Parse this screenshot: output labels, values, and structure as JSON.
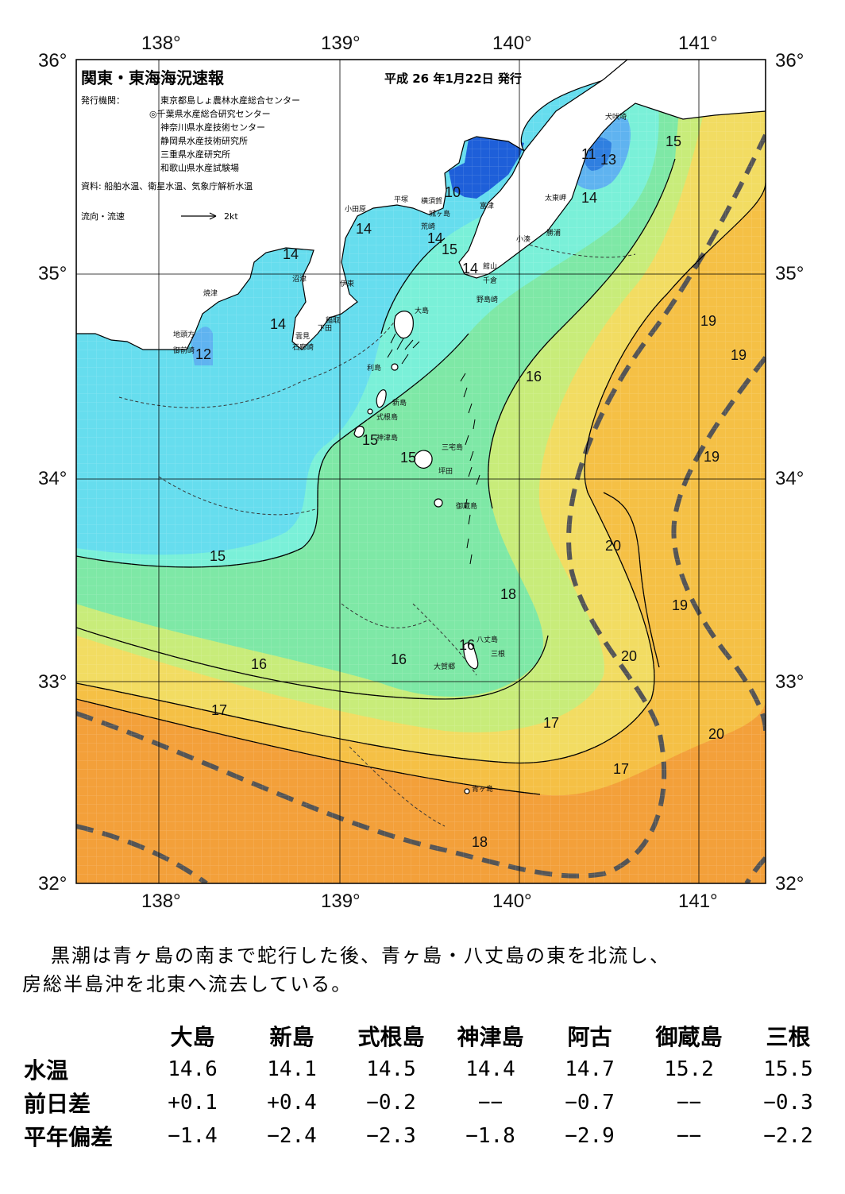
{
  "map": {
    "title": "関東・東海海況速報",
    "date": "平成 26 年1月22日 発行",
    "issuer_label": "発行機関：",
    "issuers": [
      "東京都島しょ農林水産総合センター",
      "◎千葉県水産総合研究センター",
      "神奈川県水産技術センター",
      "静岡県水産技術研究所",
      "三重県水産研究所",
      "和歌山県水産試験場"
    ],
    "sources": "資料: 船舶水温、衛星水温、気象庁解析水温",
    "legend_current": "流向・流速",
    "legend_speed": "2kt",
    "lon_ticks": [
      "138°",
      "139°",
      "140°",
      "141°"
    ],
    "lat_ticks": [
      "36°",
      "35°",
      "34°",
      "33°",
      "32°"
    ],
    "isotherm_labels": [
      "10",
      "11",
      "12",
      "13",
      "14",
      "15",
      "16",
      "17",
      "18",
      "19",
      "20"
    ],
    "placenames": {
      "inubozaki": "犬吠埼",
      "taitomisaki": "太東岬",
      "katsuura": "勝浦",
      "kominato": "小湊",
      "futtsu": "富津",
      "tateyama": "館山",
      "chikura": "千倉",
      "nojimazaki": "野島崎",
      "yokosuka": "横須賀",
      "hiratsuka": "平塚",
      "odawara": "小田原",
      "jogashima": "城ヶ島",
      "arasaki": "荒崎",
      "ito": "伊東",
      "numazu": "沼津",
      "yaizu": "焼津",
      "jitogata": "地頭方",
      "omaezaki": "御前崎",
      "inatori": "稲取",
      "shimoda": "下田",
      "kumomi": "雲見",
      "irozaki": "石廊崎",
      "oshima": "大島",
      "toshima": "利島",
      "niijima": "新島",
      "shikinejima": "式根島",
      "kozushima": "神津島",
      "miyakejima": "三宅島",
      "tsubota": "坪田",
      "mikurajima": "御蔵島",
      "hachijojima": "八丈島",
      "mitsune": "三根",
      "okago": "大賀郷",
      "aogashima": "青ヶ島"
    },
    "colors": {
      "deep_blue": "#1e5fd9",
      "blue": "#5fb3f0",
      "cyan": "#66ddee",
      "aqua": "#7af0d8",
      "green": "#7ee8a6",
      "yellow_green": "#c8ec7a",
      "yellow": "#f2dc62",
      "light_orange": "#f5c045",
      "orange": "#f3a03a",
      "kuroshio_line": "#555555"
    }
  },
  "summary": {
    "line1": "黒潮は青ヶ島の南まで蛇行した後、青ヶ島・八丈島の東を北流し、",
    "line2": "房総半島沖を北東へ流去している。"
  },
  "table": {
    "columns": [
      "大島",
      "新島",
      "式根島",
      "神津島",
      "阿古",
      "御蔵島",
      "三根"
    ],
    "rows": [
      {
        "label": "水温",
        "values": [
          "14.6",
          "14.1",
          "14.5",
          "14.4",
          "14.7",
          "15.2",
          "15.5"
        ]
      },
      {
        "label": "前日差",
        "values": [
          "+0.1",
          "+0.4",
          "−0.2",
          "−−",
          "−0.7",
          "−−",
          "−0.3"
        ]
      },
      {
        "label": "平年偏差",
        "values": [
          "−1.4",
          "−2.4",
          "−2.3",
          "−1.8",
          "−2.9",
          "−−",
          "−2.2"
        ]
      }
    ]
  }
}
